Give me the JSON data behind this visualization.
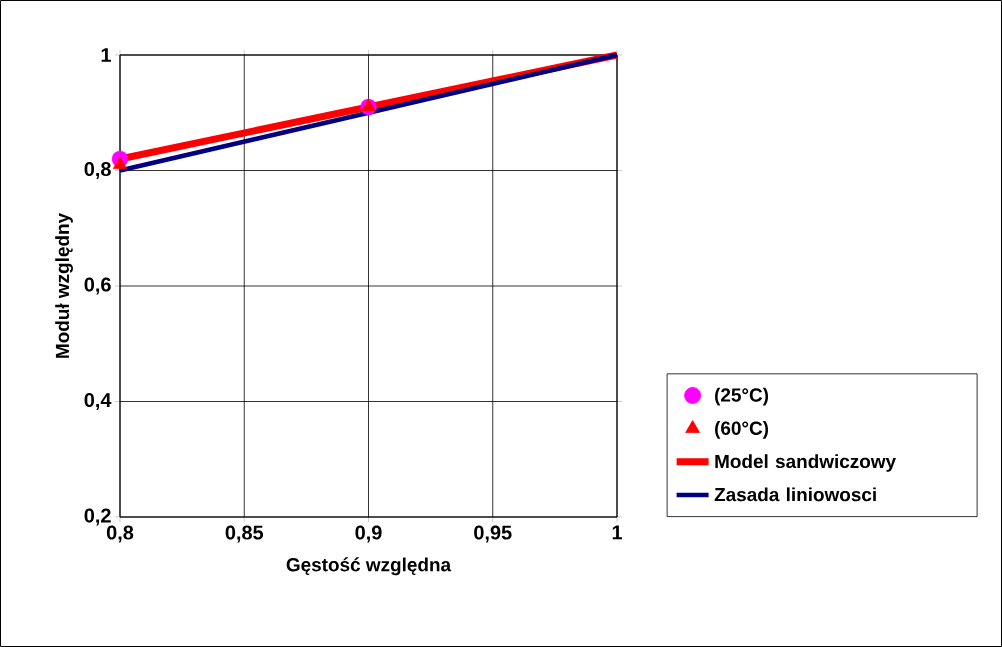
{
  "chart_data": {
    "type": "line",
    "xlabel": "Gęstość względna",
    "ylabel": "Moduł względny",
    "xlim": [
      0.8,
      1
    ],
    "ylim": [
      0.2,
      1
    ],
    "xticks": [
      {
        "value": 0.8,
        "label": "0,8"
      },
      {
        "value": 0.85,
        "label": "0,85"
      },
      {
        "value": 0.9,
        "label": "0,9"
      },
      {
        "value": 0.95,
        "label": "0,95"
      },
      {
        "value": 1,
        "label": "1"
      }
    ],
    "yticks": [
      {
        "value": 0.2,
        "label": "0,2"
      },
      {
        "value": 0.4,
        "label": "0,4"
      },
      {
        "value": 0.6,
        "label": "0,6"
      },
      {
        "value": 0.8,
        "label": "0,8"
      },
      {
        "value": 1,
        "label": "1"
      }
    ],
    "grid": true,
    "legend": "right",
    "series": [
      {
        "name": "(25°C)",
        "type": "scatter",
        "marker": "circle",
        "color": "#ff00ff",
        "x": [
          0.8,
          0.9
        ],
        "values": [
          0.82,
          0.91
        ]
      },
      {
        "name": "(60°C)",
        "type": "scatter",
        "marker": "triangle",
        "color": "#ff0000",
        "x": [
          0.8,
          0.9
        ],
        "values": [
          0.81,
          0.91
        ]
      },
      {
        "name": "Model sandwiczowy",
        "color": "#ff0000",
        "x": [
          0.8,
          0.9,
          1
        ],
        "values": [
          0.82,
          0.91,
          1
        ]
      },
      {
        "name": "Zasada liniowosci",
        "color": "#000080",
        "x": [
          0.8,
          1
        ],
        "values": [
          0.8,
          1
        ]
      }
    ]
  }
}
